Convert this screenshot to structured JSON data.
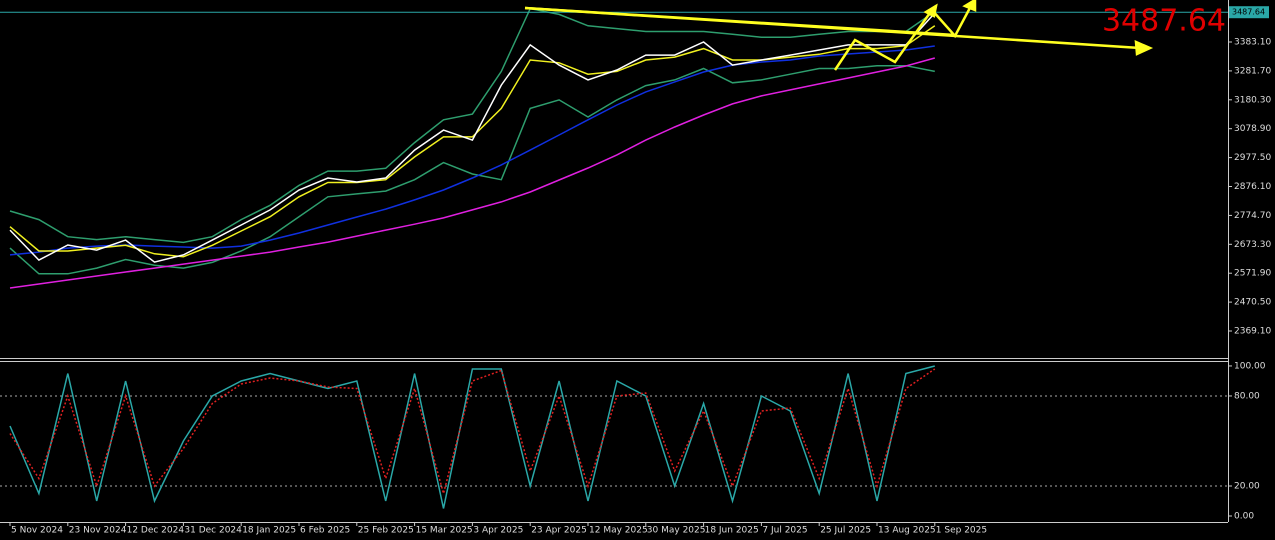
{
  "chart_data": [
    {
      "type": "line",
      "ylim": [
        2274.4,
        3530.5
      ],
      "yticks": [
        {
          "value": 3383.1,
          "label": "3383.10"
        },
        {
          "value": 3281.7,
          "label": "3281.70"
        },
        {
          "value": 3180.3,
          "label": "3180.30"
        },
        {
          "value": 3078.9,
          "label": "3078.90"
        },
        {
          "value": 2977.5,
          "label": "2977.50"
        },
        {
          "value": 2876.1,
          "label": "2876.10"
        },
        {
          "value": 2774.7,
          "label": "2774.70"
        },
        {
          "value": 2673.3,
          "label": "2673.30"
        },
        {
          "value": 2571.9,
          "label": "2571.90"
        },
        {
          "value": 2470.5,
          "label": "2470.50"
        },
        {
          "value": 2369.1,
          "label": "2369.10"
        }
      ],
      "last_price": {
        "value": 3487.64,
        "label": "3487.64"
      },
      "last_price_color": "#e00000",
      "series": [
        {
          "color": "#2e9e6e",
          "values": [
            2790,
            2760,
            2700,
            2690,
            2700,
            2690,
            2680,
            2700,
            2760,
            2810,
            2880,
            2930,
            2930,
            2940,
            3030,
            3110,
            3130,
            3280,
            3500,
            3480,
            3440,
            3430,
            3420,
            3420,
            3420,
            3410,
            3400,
            3400,
            3410,
            3420,
            3420,
            3420,
            3490
          ]
        },
        {
          "color": "#2e9e6e",
          "values": [
            2660,
            2570,
            2570,
            2590,
            2620,
            2600,
            2590,
            2610,
            2650,
            2700,
            2770,
            2840,
            2850,
            2860,
            2900,
            2960,
            2920,
            2900,
            3150,
            3180,
            3120,
            3180,
            3230,
            3250,
            3290,
            3240,
            3250,
            3270,
            3290,
            3290,
            3300,
            3300,
            3280
          ]
        },
        {
          "color": "#e020e0",
          "values": [
            2520,
            2534,
            2548,
            2562,
            2576,
            2590,
            2604,
            2618,
            2632,
            2646,
            2664,
            2681,
            2702,
            2723,
            2744,
            2766,
            2794,
            2822,
            2857,
            2899,
            2941,
            2987,
            3039,
            3085,
            3127,
            3166,
            3194,
            3215,
            3236,
            3257,
            3278,
            3299,
            3327
          ]
        },
        {
          "color": "#1030e0",
          "values": [
            2636,
            2646,
            2660,
            2667,
            2671,
            2667,
            2664,
            2660,
            2667,
            2688,
            2713,
            2741,
            2769,
            2797,
            2829,
            2864,
            2906,
            2952,
            3004,
            3057,
            3110,
            3162,
            3208,
            3243,
            3278,
            3302,
            3313,
            3320,
            3334,
            3341,
            3348,
            3355,
            3369
          ]
        },
        {
          "color": "#f0f020",
          "values": [
            2735,
            2650,
            2650,
            2660,
            2670,
            2640,
            2630,
            2670,
            2720,
            2770,
            2840,
            2890,
            2890,
            2900,
            2980,
            3050,
            3050,
            3150,
            3320,
            3310,
            3270,
            3280,
            3320,
            3330,
            3360,
            3320,
            3320,
            3330,
            3340,
            3360,
            3360,
            3370,
            3440
          ]
        },
        {
          "color": "#ffffff",
          "values": [
            2723,
            2618,
            2671,
            2653,
            2688,
            2611,
            2636,
            2688,
            2741,
            2794,
            2864,
            2906,
            2892,
            2906,
            3004,
            3074,
            3039,
            3232,
            3373,
            3302,
            3250,
            3285,
            3337,
            3337,
            3383,
            3302,
            3320,
            3337,
            3355,
            3373,
            3373,
            3373,
            3485
          ]
        }
      ]
    },
    {
      "type": "line",
      "categories": [
        "5 Nov 2024",
        null,
        "23 Nov 2024",
        null,
        "12 Dec 2024",
        null,
        "31 Dec 2024",
        null,
        "18 Jan 2025",
        null,
        "6 Feb 2025",
        null,
        "25 Feb 2025",
        null,
        "15 Mar 2025",
        null,
        "3 Apr 2025",
        null,
        "23 Apr 2025",
        null,
        "12 May 2025",
        null,
        "30 May 2025",
        null,
        "18 Jun 2025",
        null,
        "7 Jul 2025",
        null,
        "25 Jul 2025",
        null,
        "13 Aug 2025",
        null,
        "1 Sep 2025"
      ],
      "ylim": [
        -4,
        103.3
      ],
      "yticks": [
        {
          "value": 100,
          "label": "100.00"
        },
        {
          "value": 80,
          "label": "80.00"
        },
        {
          "value": 20,
          "label": "20.00"
        },
        {
          "value": 0,
          "label": "0.00"
        }
      ],
      "levels": [
        80,
        20
      ],
      "series": [
        {
          "color": "#2aa8a8",
          "values": [
            60,
            15,
            95,
            10,
            90,
            10,
            50,
            80,
            90,
            95,
            90,
            85,
            90,
            10,
            95,
            5,
            98,
            98,
            20,
            90,
            10,
            90,
            80,
            20,
            75,
            10,
            80,
            70,
            15,
            95,
            10,
            95,
            100
          ]
        },
        {
          "color": "#e02020",
          "dashed": true,
          "values": [
            55,
            25,
            80,
            20,
            80,
            20,
            45,
            75,
            88,
            92,
            90,
            86,
            85,
            25,
            85,
            15,
            90,
            97,
            30,
            80,
            20,
            80,
            82,
            30,
            70,
            20,
            70,
            72,
            25,
            85,
            20,
            85,
            98
          ]
        }
      ]
    }
  ]
}
